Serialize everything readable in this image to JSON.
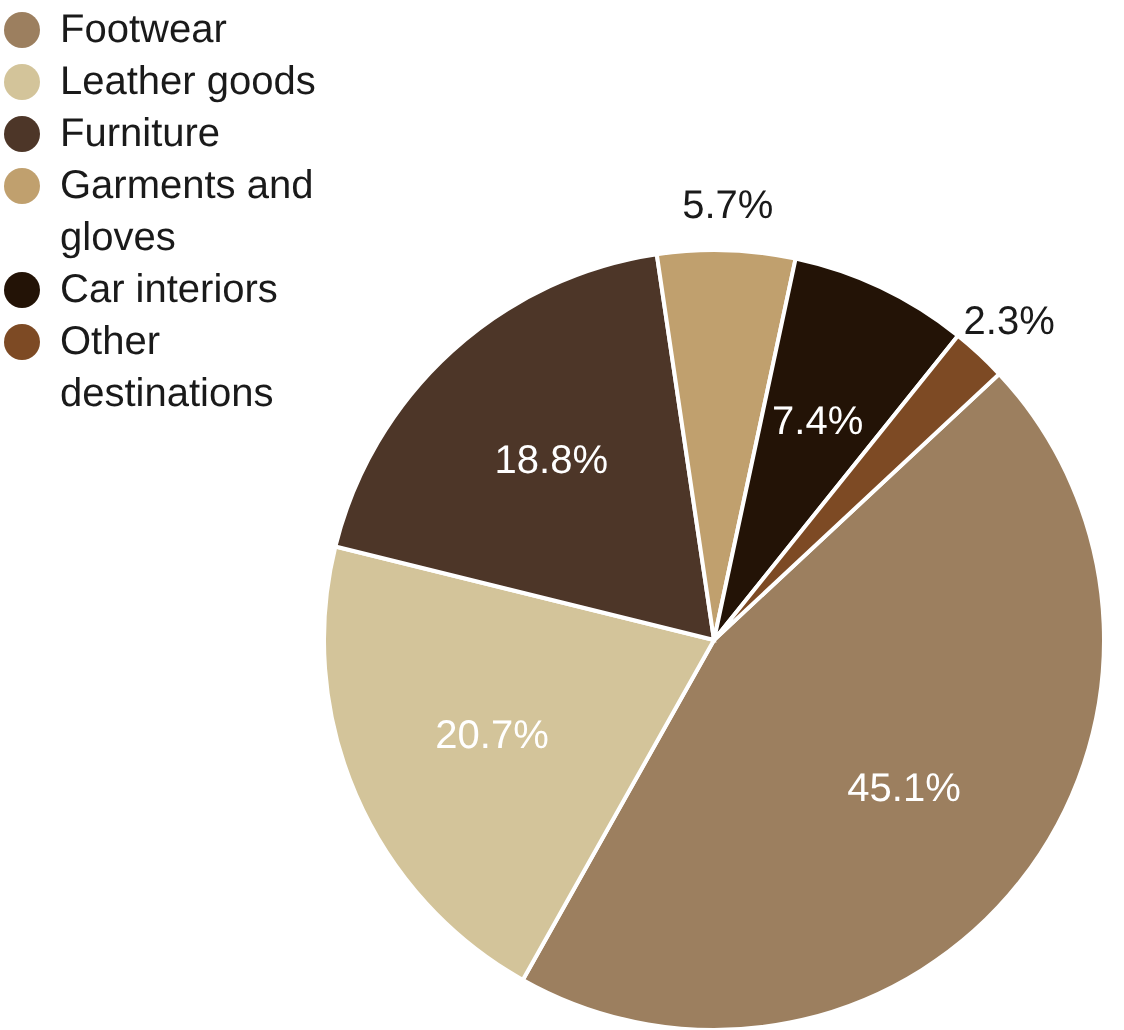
{
  "chart_data": {
    "type": "pie",
    "categories": [
      "Footwear",
      "Leather goods",
      "Furniture",
      "Garments and gloves",
      "Car interiors",
      "Other destinations"
    ],
    "values": [
      45.1,
      20.7,
      18.8,
      5.7,
      7.4,
      2.3
    ],
    "colors": [
      "#9c7f5f",
      "#d3c49a",
      "#4d3628",
      "#c0a06e",
      "#231306",
      "#7d4a24"
    ],
    "value_labels": [
      "45.1%",
      "20.7%",
      "18.8%",
      "5.7%",
      "7.4%",
      "2.3%"
    ],
    "legend": "top left"
  }
}
